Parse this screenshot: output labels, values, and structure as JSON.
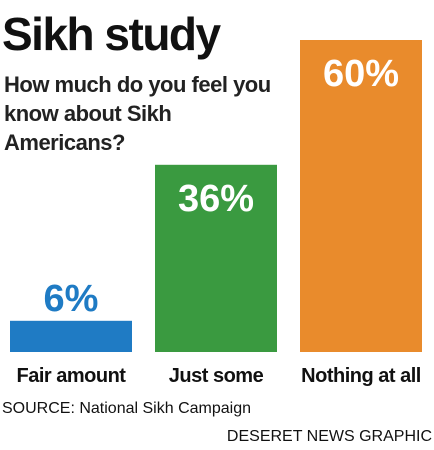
{
  "chart_data": {
    "type": "bar",
    "title": "Sikh study",
    "subtitle": "How much do you feel you know about Sikh Americans?",
    "categories": [
      "Fair amount",
      "Just some",
      "Nothing at all"
    ],
    "values": [
      6,
      36,
      60
    ],
    "value_labels": [
      "6%",
      "36%",
      "60%"
    ],
    "colors": [
      "#1f7bc4",
      "#3a9a40",
      "#e98b2c"
    ],
    "source": "SOURCE: National Sikh Campaign",
    "credit": "DESERET NEWS GRAPHIC"
  }
}
